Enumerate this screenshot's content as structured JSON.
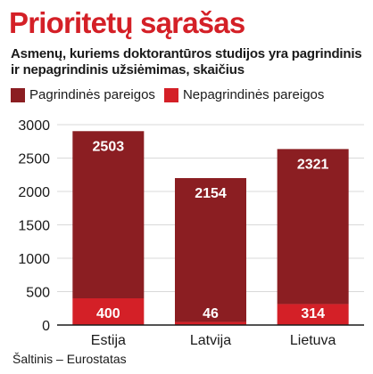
{
  "header": {
    "title": "Prioritetų sąrašas",
    "subtitle": "Asmenų, kuriems doktorantūros studijos yra pagrindinis ir nepagrindinis užsiėmimas, skaičius"
  },
  "colors": {
    "title": "#d42027",
    "primary_series": "#8b1e22",
    "secondary_series": "#d42027",
    "grid": "#d9d9d9"
  },
  "chart_data": {
    "type": "bar",
    "stacked": true,
    "categories": [
      "Estija",
      "Latvija",
      "Lietuva"
    ],
    "series": [
      {
        "name": "Pagrindinės pareigos",
        "values": [
          2503,
          2154,
          2321
        ],
        "color": "#8b1e22"
      },
      {
        "name": "Nepagrindinės pareigos",
        "values": [
          400,
          46,
          314
        ],
        "color": "#d42027"
      }
    ],
    "y_ticks": [
      0,
      500,
      1000,
      1500,
      2000,
      2500,
      3000
    ],
    "ylim": [
      0,
      3000
    ],
    "grid": true,
    "legend_position": "top-left"
  },
  "footer": {
    "source": "Šaltinis – Eurostatas"
  }
}
